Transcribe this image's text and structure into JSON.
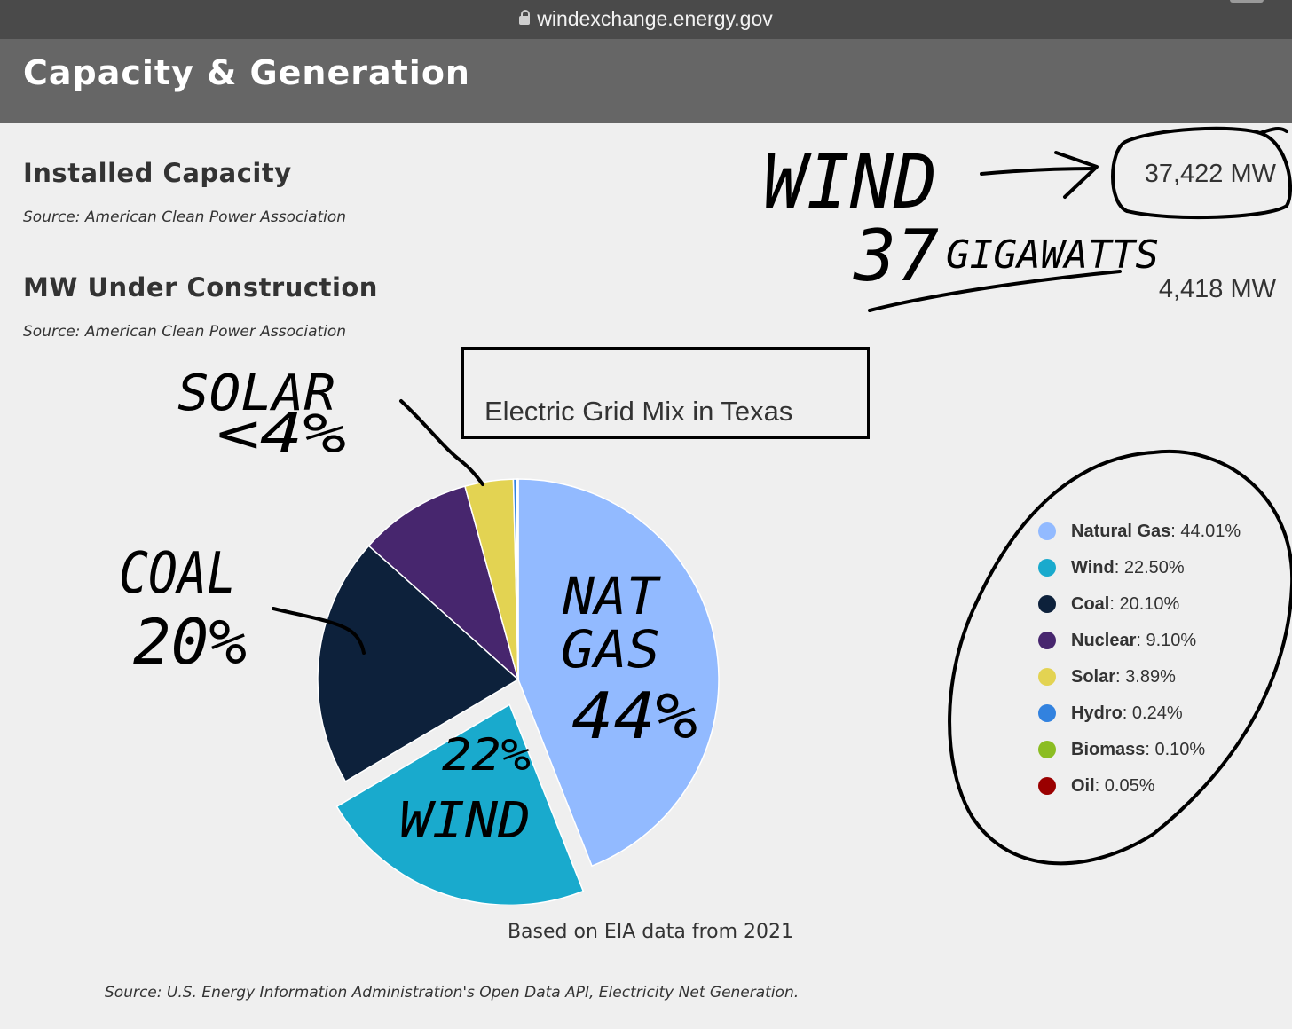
{
  "browser": {
    "url": "windexchange.energy.gov"
  },
  "header": {
    "title": "Capacity & Generation"
  },
  "stats": [
    {
      "label": "Installed Capacity",
      "source": "Source: American Clean Power Association",
      "value": "37,422 MW"
    },
    {
      "label": "MW Under Construction",
      "source": "Source: American Clean Power Association",
      "value": "4,418 MW"
    }
  ],
  "chart": {
    "title": "Electric Grid Mix in Texas",
    "footnote": "Based on EIA data from 2021",
    "source": "Source: U.S. Energy Information Administration's Open Data API, Electricity Net Generation."
  },
  "chart_data": {
    "type": "pie",
    "title": "Electric Grid Mix in Texas",
    "unit": "%",
    "exploded": "Wind",
    "legend_position": "right",
    "slices": [
      {
        "name": "Natural Gas",
        "value": 44.01,
        "label": "44.01%",
        "color": "#92baff"
      },
      {
        "name": "Wind",
        "value": 22.5,
        "label": "22.50%",
        "color": "#19aacd"
      },
      {
        "name": "Coal",
        "value": 20.1,
        "label": "20.10%",
        "color": "#0d213b"
      },
      {
        "name": "Nuclear",
        "value": 9.1,
        "label": "9.10%",
        "color": "#47266e"
      },
      {
        "name": "Solar",
        "value": 3.89,
        "label": "3.89%",
        "color": "#e3d352"
      },
      {
        "name": "Hydro",
        "value": 0.24,
        "label": "0.24%",
        "color": "#3282df"
      },
      {
        "name": "Biomass",
        "value": 0.1,
        "label": "0.10%",
        "color": "#8bbd22"
      },
      {
        "name": "Oil",
        "value": 0.05,
        "label": "0.05%",
        "color": "#9a0000"
      }
    ]
  },
  "annotations": {
    "wind": "WIND",
    "arrow": "→",
    "gigawatts_num": "37",
    "gigawatts": "GIGAWATTS",
    "solar": "SOLAR",
    "solar_pct": "<4%",
    "coal": "COAL",
    "coal_pct": "20%",
    "natgas_1": "NAT",
    "natgas_2": "GAS",
    "natgas_pct": "44%",
    "wind_pct": "22%",
    "wind_2": "WIND"
  }
}
